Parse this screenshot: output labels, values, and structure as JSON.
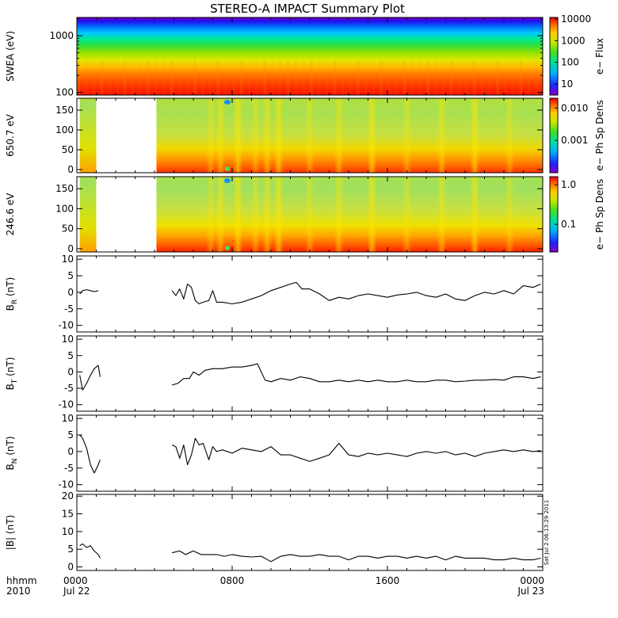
{
  "chart_data": {
    "type": "line",
    "title": "STEREO-A IMPACT Summary Plot",
    "x_axis": {
      "tick_labels": [
        "0000",
        "0800",
        "1600",
        "0000"
      ],
      "tick_hours": [
        0,
        8,
        16,
        24
      ],
      "date_labels": [
        "Jul 22",
        "Jul 23"
      ],
      "corner_labels": [
        "hhmm",
        "2010"
      ],
      "range_hours": [
        0,
        24
      ]
    },
    "timestamp": "Sat Jul  2 06:13:29 2011",
    "panels": [
      {
        "id": "swea",
        "type": "heatmap",
        "ylabel": "SWEA (eV)",
        "scale": "log",
        "ylim": [
          90,
          2100
        ],
        "ytick_labels": [
          "100",
          "1000"
        ],
        "ytick_values": [
          100,
          1000
        ],
        "colorbar": {
          "label": "e− Flux",
          "scale": "log",
          "range": [
            3,
            12000
          ],
          "tick_labels": [
            "10",
            "100",
            "1000",
            "10000"
          ],
          "tick_values": [
            10,
            100,
            1000,
            10000
          ]
        }
      },
      {
        "id": "pad650",
        "type": "heatmap",
        "ylabel": "650.7 eV",
        "ylim": [
          -8,
          180
        ],
        "ytick_labels": [
          "0",
          "50",
          "100",
          "150"
        ],
        "ytick_values": [
          0,
          50,
          100,
          150
        ],
        "data_gaps_hours": [
          [
            1.0,
            4.1
          ]
        ],
        "colorbar": {
          "label": "e− Ph Sp Dens",
          "scale": "log",
          "range": [
            0.0001,
            0.02
          ],
          "tick_labels": [
            "0.001",
            "0.010"
          ],
          "tick_values": [
            0.001,
            0.01
          ]
        }
      },
      {
        "id": "pad246",
        "type": "heatmap",
        "ylabel": "246.6 eV",
        "ylim": [
          -8,
          180
        ],
        "ytick_labels": [
          "0",
          "50",
          "100",
          "150"
        ],
        "ytick_values": [
          0,
          50,
          100,
          150
        ],
        "data_gaps_hours": [
          [
            1.0,
            4.1
          ]
        ],
        "colorbar": {
          "label": "e− Ph Sp Dens",
          "scale": "log",
          "range": [
            0.02,
            1.6
          ],
          "tick_labels": [
            "0.1",
            "1.0"
          ],
          "tick_values": [
            0.1,
            1.0
          ]
        }
      },
      {
        "id": "br",
        "type": "line",
        "ylabel_main": "B",
        "ylabel_sub": "R",
        "ylabel_unit": "(nT)",
        "ylim": [
          -12,
          11
        ],
        "ytick_labels": [
          "-10",
          "-5",
          "0",
          "5",
          "10"
        ],
        "ytick_values": [
          -10,
          -5,
          0,
          5,
          10
        ],
        "segments": [
          {
            "x": [
              0.15,
              0.3,
              0.5,
              0.7,
              0.9,
              1.1
            ],
            "y": [
              -0.5,
              0.5,
              0.8,
              0.5,
              0.2,
              0.5
            ]
          },
          {
            "x": [
              4.9,
              5.1,
              5.3,
              5.5,
              5.7,
              5.9,
              6.1,
              6.3,
              6.5,
              6.8,
              7.0,
              7.2,
              7.5,
              8.0,
              8.5,
              9.0,
              9.5,
              10.0,
              10.5,
              11.0,
              11.3,
              11.6,
              12.0,
              12.5,
              13.0,
              13.5,
              14.0,
              14.5,
              15.0,
              15.5,
              16.0,
              16.5,
              17.0,
              17.5,
              18.0,
              18.5,
              19.0,
              19.5,
              20.0,
              20.5,
              21.0,
              21.5,
              22.0,
              22.5,
              23.0,
              23.5,
              23.9
            ],
            "y": [
              0.5,
              -1,
              1,
              -2,
              2.5,
              1.5,
              -2.5,
              -3.5,
              -3,
              -2.5,
              0.5,
              -3,
              -3,
              -3.5,
              -3,
              -2,
              -1,
              0.5,
              1.5,
              2.5,
              3,
              1,
              1,
              -0.5,
              -2.5,
              -1.5,
              -2,
              -1,
              -0.5,
              -1,
              -1.5,
              -0.8,
              -0.5,
              0,
              -1,
              -1.5,
              -0.5,
              -2,
              -2.5,
              -1,
              0,
              -0.5,
              0.5,
              -0.5,
              2,
              1.5,
              2.5
            ]
          }
        ]
      },
      {
        "id": "bt",
        "type": "line",
        "ylabel_main": "B",
        "ylabel_sub": "T",
        "ylabel_unit": "(nT)",
        "ylim": [
          -12,
          11
        ],
        "ytick_labels": [
          "-10",
          "-5",
          "0",
          "5",
          "10"
        ],
        "ytick_values": [
          -10,
          -5,
          0,
          5,
          10
        ],
        "segments": [
          {
            "x": [
              0.15,
              0.3,
              0.5,
              0.7,
              0.9,
              1.1,
              1.2
            ],
            "y": [
              -1,
              -5.5,
              -3.5,
              -1,
              1,
              2,
              -1.5
            ]
          },
          {
            "x": [
              4.9,
              5.2,
              5.5,
              5.8,
              6.0,
              6.3,
              6.6,
              7.0,
              7.5,
              8.0,
              8.5,
              9.0,
              9.3,
              9.7,
              10.0,
              10.5,
              11.0,
              11.5,
              12.0,
              12.5,
              13.0,
              13.5,
              14.0,
              14.5,
              15.0,
              15.5,
              16.0,
              16.5,
              17.0,
              17.5,
              18.0,
              18.5,
              19.0,
              19.5,
              20.0,
              20.5,
              21.0,
              21.5,
              22.0,
              22.5,
              23.0,
              23.5,
              23.9
            ],
            "y": [
              -4,
              -3.5,
              -2,
              -2,
              0,
              -1,
              0.5,
              1,
              1,
              1.5,
              1.5,
              2,
              2.5,
              -2.5,
              -3,
              -2,
              -2.5,
              -1.5,
              -2,
              -3,
              -3,
              -2.5,
              -3,
              -2.5,
              -3,
              -2.5,
              -3,
              -3,
              -2.5,
              -3,
              -3,
              -2.5,
              -2.5,
              -3,
              -2.8,
              -2.5,
              -2.5,
              -2.3,
              -2.5,
              -1.5,
              -1.5,
              -2,
              -1.5
            ]
          }
        ]
      },
      {
        "id": "bn",
        "type": "line",
        "ylabel_main": "B",
        "ylabel_sub": "N",
        "ylabel_unit": "(nT)",
        "ylim": [
          -12,
          11
        ],
        "ytick_labels": [
          "-10",
          "-5",
          "0",
          "5",
          "10"
        ],
        "ytick_values": [
          -10,
          -5,
          0,
          5,
          10
        ],
        "segments": [
          {
            "x": [
              0.15,
              0.3,
              0.5,
              0.7,
              0.9,
              1.1,
              1.2
            ],
            "y": [
              5,
              4,
              1,
              -4,
              -6.5,
              -4,
              -2.5
            ]
          },
          {
            "x": [
              4.9,
              5.1,
              5.3,
              5.5,
              5.7,
              5.9,
              6.1,
              6.3,
              6.5,
              6.8,
              7.0,
              7.2,
              7.5,
              8.0,
              8.5,
              9.0,
              9.5,
              10.0,
              10.5,
              11.0,
              11.5,
              12.0,
              12.5,
              13.0,
              13.5,
              14.0,
              14.5,
              15.0,
              15.5,
              16.0,
              16.5,
              17.0,
              17.5,
              18.0,
              18.5,
              19.0,
              19.5,
              20.0,
              20.5,
              21.0,
              21.5,
              22.0,
              22.5,
              23.0,
              23.5,
              23.9
            ],
            "y": [
              2,
              1.5,
              -2,
              2,
              -4,
              -1,
              4,
              2,
              2.5,
              -2.5,
              1.5,
              0,
              0.5,
              -0.5,
              1,
              0.5,
              0,
              1.5,
              -1,
              -1,
              -2,
              -3,
              -2,
              -1,
              2.5,
              -1,
              -1.5,
              -0.5,
              -1,
              -0.5,
              -1,
              -1.5,
              -0.5,
              0,
              -0.5,
              0,
              -1,
              -0.5,
              -1.5,
              -0.5,
              0,
              0.5,
              0,
              0.5,
              0,
              0.3
            ]
          }
        ]
      },
      {
        "id": "babs",
        "type": "line",
        "ylabel_main": "|B|",
        "ylabel_sub": "",
        "ylabel_unit": "(nT)",
        "ylim": [
          -1,
          20.5
        ],
        "ytick_labels": [
          "0",
          "5",
          "10",
          "15",
          "20"
        ],
        "ytick_values": [
          0,
          5,
          10,
          15,
          20
        ],
        "segments": [
          {
            "x": [
              0.15,
              0.3,
              0.5,
              0.7,
              0.9,
              1.1,
              1.2
            ],
            "y": [
              6,
              6.5,
              5.5,
              6,
              4.5,
              3.5,
              2.5
            ]
          },
          {
            "x": [
              4.9,
              5.3,
              5.6,
              6.0,
              6.4,
              6.8,
              7.2,
              7.6,
              8.0,
              8.5,
              9.0,
              9.5,
              10.0,
              10.5,
              11.0,
              11.5,
              12.0,
              12.5,
              13.0,
              13.5,
              14.0,
              14.5,
              15.0,
              15.5,
              16.0,
              16.5,
              17.0,
              17.5,
              18.0,
              18.5,
              19.0,
              19.5,
              20.0,
              20.5,
              21.0,
              21.5,
              22.0,
              22.5,
              23.0,
              23.5,
              23.9
            ],
            "y": [
              4,
              4.5,
              3.5,
              4.5,
              3.5,
              3.5,
              3.5,
              3,
              3.5,
              3,
              2.8,
              3,
              1.5,
              3,
              3.5,
              3,
              3,
              3.5,
              3,
              3,
              2,
              3,
              3,
              2.5,
              3,
              3,
              2.5,
              3,
              2.5,
              3,
              2,
              3,
              2.5,
              2.5,
              2.5,
              2,
              2,
              2.5,
              2,
              2,
              2.5
            ]
          }
        ]
      }
    ]
  }
}
